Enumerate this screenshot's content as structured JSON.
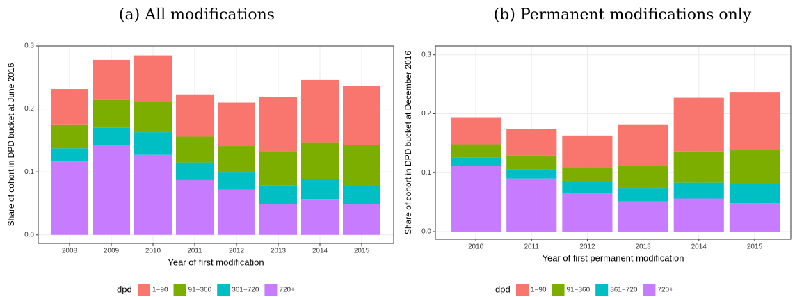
{
  "chart_data": [
    {
      "type": "bar",
      "stacked": true,
      "title": "(a) All modifications",
      "x_label": "Year of first modification",
      "y_label": "Share of cohort in DPD bucket at June 2016",
      "legend_title": "dpd",
      "legend_position": "bottom",
      "grid": true,
      "categories": [
        "2008",
        "2009",
        "2010",
        "2011",
        "2012",
        "2013",
        "2014",
        "2015"
      ],
      "series": [
        {
          "name": "720+",
          "color": "#C77CFF",
          "values": [
            0.1165,
            0.143,
            0.127,
            0.087,
            0.072,
            0.049,
            0.057,
            0.049
          ]
        },
        {
          "name": "361−720",
          "color": "#00BFC4",
          "values": [
            0.021,
            0.027,
            0.036,
            0.028,
            0.027,
            0.03,
            0.032,
            0.029
          ]
        },
        {
          "name": "91−360",
          "color": "#7CAE00",
          "values": [
            0.038,
            0.044,
            0.048,
            0.041,
            0.042,
            0.054,
            0.058,
            0.065
          ]
        },
        {
          "name": "1−90",
          "color": "#F8766D",
          "values": [
            0.056,
            0.064,
            0.074,
            0.067,
            0.069,
            0.086,
            0.099,
            0.094
          ]
        }
      ],
      "ylim": [
        -0.0135,
        0.3
      ],
      "yticks": [
        {
          "value": 0,
          "label": "0.0"
        },
        0.1,
        0.2,
        0.3
      ]
    },
    {
      "type": "bar",
      "stacked": true,
      "title": "(b) Permanent modifications only",
      "x_label": "Year of first permanent modification",
      "y_label": "Share of cohort in DPD bucket at December 2016",
      "legend_title": "dpd",
      "legend_position": "bottom",
      "grid": true,
      "categories": [
        "2010",
        "2011",
        "2012",
        "2013",
        "2014",
        "2015"
      ],
      "series": [
        {
          "name": "720+",
          "color": "#C77CFF",
          "values": [
            0.111,
            0.09,
            0.065,
            0.051,
            0.056,
            0.048
          ]
        },
        {
          "name": "361−720",
          "color": "#00BFC4",
          "values": [
            0.015,
            0.016,
            0.019,
            0.022,
            0.027,
            0.033
          ]
        },
        {
          "name": "91−360",
          "color": "#7CAE00",
          "values": [
            0.022,
            0.023,
            0.025,
            0.04,
            0.053,
            0.057
          ]
        },
        {
          "name": "1−90",
          "color": "#F8766D",
          "values": [
            0.046,
            0.045,
            0.054,
            0.069,
            0.091,
            0.099
          ]
        }
      ],
      "ylim": [
        -0.013,
        0.315
      ],
      "yticks": [
        {
          "value": 0,
          "label": "0.0"
        },
        0.1,
        0.2,
        0.3
      ]
    }
  ]
}
